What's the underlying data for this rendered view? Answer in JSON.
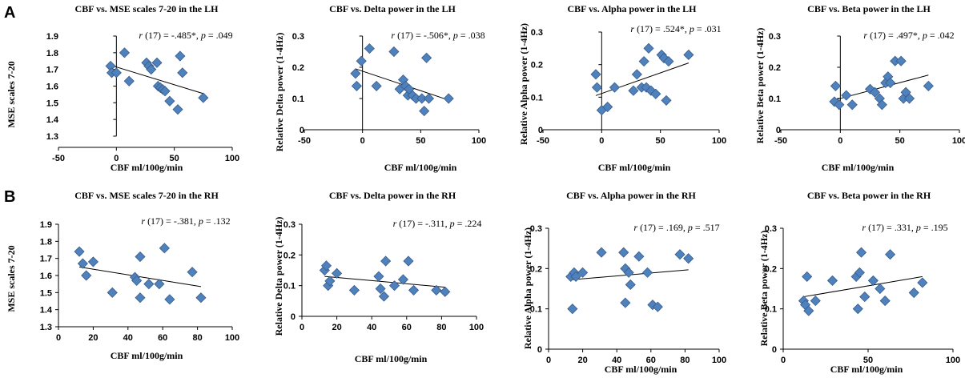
{
  "panel_labels": [
    "A",
    "B"
  ],
  "colors": {
    "marker_fill": "#4f81bd",
    "marker_stroke": "#385d8a",
    "axis": "#000000",
    "trend": "#000000"
  },
  "chart_data": [
    {
      "type": "scatter",
      "title": "CBF vs. MSE scales 7-20 in the LH",
      "xlabel": "CBF ml/100g/min",
      "ylabel": "MSE scales 7-20",
      "xlim": [
        -50,
        100
      ],
      "xticks": [
        -50,
        0,
        50,
        100
      ],
      "ylim": [
        1.3,
        1.9
      ],
      "yticks": [
        1.3,
        1.4,
        1.5,
        1.6,
        1.7,
        1.8,
        1.9
      ],
      "stat": {
        "r": "r",
        "df": " (17) = ",
        "rval": "-.485*",
        "sep": ", ",
        "p": "p",
        "eq": " = ",
        "pval": ".049"
      },
      "points": [
        [
          -5,
          1.72
        ],
        [
          -4,
          1.68
        ],
        [
          0,
          1.68
        ],
        [
          7,
          1.8
        ],
        [
          11,
          1.63
        ],
        [
          26,
          1.74
        ],
        [
          28,
          1.72
        ],
        [
          30,
          1.7
        ],
        [
          35,
          1.74
        ],
        [
          36,
          1.6
        ],
        [
          38,
          1.59
        ],
        [
          40,
          1.58
        ],
        [
          42,
          1.57
        ],
        [
          46,
          1.51
        ],
        [
          53,
          1.46
        ],
        [
          55,
          1.78
        ],
        [
          57,
          1.68
        ],
        [
          75,
          1.53
        ]
      ],
      "trend": [
        [
          -5,
          1.725
        ],
        [
          75,
          1.555
        ]
      ]
    },
    {
      "type": "scatter",
      "title": "CBF vs. Delta power in the LH",
      "xlabel": "CBF ml/100g/min",
      "ylabel": "Relative Delta power (1-4Hz)",
      "xlim": [
        -50,
        100
      ],
      "xticks": [
        -50,
        0,
        50,
        100
      ],
      "ylim": [
        0,
        0.3
      ],
      "yticks": [
        0,
        0.1,
        0.2,
        0.3
      ],
      "stat": {
        "r": "r",
        "df": " (17) = ",
        "rval": "-.506*",
        "sep": ", ",
        "p": "p",
        "eq": " = ",
        "pval": ".038"
      },
      "points": [
        [
          -6,
          0.18
        ],
        [
          -5,
          0.14
        ],
        [
          -1,
          0.22
        ],
        [
          6,
          0.26
        ],
        [
          12,
          0.14
        ],
        [
          27,
          0.25
        ],
        [
          32,
          0.13
        ],
        [
          35,
          0.16
        ],
        [
          37,
          0.14
        ],
        [
          39,
          0.11
        ],
        [
          40,
          0.13
        ],
        [
          43,
          0.11
        ],
        [
          46,
          0.1
        ],
        [
          51,
          0.1
        ],
        [
          53,
          0.06
        ],
        [
          55,
          0.23
        ],
        [
          57,
          0.1
        ],
        [
          74,
          0.1
        ]
      ],
      "trend": [
        [
          -6,
          0.195
        ],
        [
          74,
          0.095
        ]
      ]
    },
    {
      "type": "scatter",
      "title": "CBF vs. Alpha power in the LH",
      "xlabel": "CBF ml/100g/min",
      "ylabel": "Relative Alpha power (1-4Hz)",
      "xlim": [
        -50,
        100
      ],
      "xticks": [
        -50,
        0,
        50,
        100
      ],
      "ylim": [
        0,
        0.3
      ],
      "yticks": [
        0,
        0.1,
        0.2,
        0.3
      ],
      "stat": {
        "r": "r",
        "df": " (17) = ",
        "rval": ".524*",
        "sep": ", ",
        "p": "p",
        "eq": " = ",
        "pval": ".031"
      },
      "points": [
        [
          -5,
          0.17
        ],
        [
          -4,
          0.13
        ],
        [
          0,
          0.06
        ],
        [
          5,
          0.07
        ],
        [
          11,
          0.13
        ],
        [
          27,
          0.12
        ],
        [
          30,
          0.17
        ],
        [
          34,
          0.13
        ],
        [
          36,
          0.21
        ],
        [
          38,
          0.13
        ],
        [
          40,
          0.25
        ],
        [
          42,
          0.12
        ],
        [
          46,
          0.11
        ],
        [
          51,
          0.23
        ],
        [
          53,
          0.22
        ],
        [
          55,
          0.09
        ],
        [
          57,
          0.21
        ],
        [
          74,
          0.23
        ]
      ],
      "trend": [
        [
          -5,
          0.105
        ],
        [
          74,
          0.205
        ]
      ]
    },
    {
      "type": "scatter",
      "title": "CBF vs. Beta power in the LH",
      "xlabel": "CBF ml/100g/min",
      "ylabel": "Relative Beta  power (1-4Hz)",
      "xlim": [
        -50,
        100
      ],
      "xticks": [
        -50,
        0,
        50,
        100
      ],
      "ylim": [
        0,
        0.3
      ],
      "yticks": [
        0,
        0.1,
        0.2,
        0.3
      ],
      "stat": {
        "r": "r",
        "df": " (17) = ",
        "rval": ".497*",
        "sep": ", ",
        "p": "p",
        "eq": " = ",
        "pval": ".042"
      },
      "points": [
        [
          -5,
          0.09
        ],
        [
          -4,
          0.14
        ],
        [
          -1,
          0.08
        ],
        [
          5,
          0.11
        ],
        [
          10,
          0.08
        ],
        [
          25,
          0.13
        ],
        [
          29,
          0.12
        ],
        [
          33,
          0.1
        ],
        [
          35,
          0.08
        ],
        [
          38,
          0.15
        ],
        [
          40,
          0.17
        ],
        [
          42,
          0.15
        ],
        [
          46,
          0.22
        ],
        [
          51,
          0.22
        ],
        [
          53,
          0.1
        ],
        [
          55,
          0.12
        ],
        [
          58,
          0.1
        ],
        [
          74,
          0.14
        ]
      ],
      "trend": [
        [
          -5,
          0.095
        ],
        [
          74,
          0.175
        ]
      ]
    },
    {
      "type": "scatter",
      "title": "CBF vs. MSE scales 7-20 in the RH",
      "xlabel": "CBF ml/100g/min",
      "ylabel": "MSE scales 7-20",
      "xlim": [
        0,
        100
      ],
      "xticks": [
        0,
        20,
        40,
        60,
        80,
        100
      ],
      "ylim": [
        1.3,
        1.9
      ],
      "yticks": [
        1.3,
        1.4,
        1.5,
        1.6,
        1.7,
        1.8,
        1.9
      ],
      "stat": {
        "r": "r",
        "df": " (17) = ",
        "rval": "-.381",
        "sep": ", ",
        "p": "p",
        "eq": " = ",
        "pval": ".132"
      },
      "points": [
        [
          12,
          1.74
        ],
        [
          14,
          1.67
        ],
        [
          16,
          1.6
        ],
        [
          20,
          1.68
        ],
        [
          31,
          1.5
        ],
        [
          44,
          1.59
        ],
        [
          45,
          1.57
        ],
        [
          47,
          1.71
        ],
        [
          47,
          1.47
        ],
        [
          52,
          1.55
        ],
        [
          58,
          1.55
        ],
        [
          61,
          1.76
        ],
        [
          64,
          1.46
        ],
        [
          77,
          1.62
        ],
        [
          82,
          1.47
        ]
      ],
      "trend": [
        [
          12,
          1.65
        ],
        [
          82,
          1.535
        ]
      ]
    },
    {
      "type": "scatter",
      "title": "CBF vs. Delta power in the RH",
      "xlabel": "CBF ml/100g/min",
      "ylabel": "Relative Delta power (1-4Hz)",
      "xlim": [
        0,
        100
      ],
      "xticks": [
        0,
        20,
        40,
        60,
        80,
        100
      ],
      "ylim": [
        0,
        0.3
      ],
      "yticks": [
        0,
        0.1,
        0.2,
        0.3
      ],
      "stat": {
        "r": "r",
        "df": " (17) = ",
        "rval": "-.311",
        "sep": ", ",
        "p": "p",
        "eq": " = ",
        "pval": ".224"
      },
      "points": [
        [
          13,
          0.15
        ],
        [
          14,
          0.165
        ],
        [
          15,
          0.1
        ],
        [
          16,
          0.115
        ],
        [
          20,
          0.14
        ],
        [
          30,
          0.085
        ],
        [
          44,
          0.13
        ],
        [
          45,
          0.09
        ],
        [
          47,
          0.065
        ],
        [
          48,
          0.18
        ],
        [
          53,
          0.1
        ],
        [
          58,
          0.12
        ],
        [
          61,
          0.18
        ],
        [
          64,
          0.085
        ],
        [
          77,
          0.085
        ],
        [
          82,
          0.08
        ]
      ],
      "trend": [
        [
          13,
          0.13
        ],
        [
          82,
          0.095
        ]
      ]
    },
    {
      "type": "scatter",
      "title": "CBF vs. Alpha power in the RH",
      "xlabel": "CBF ml/100g/min",
      "ylabel": "Relative Alpha power (1-4Hz)",
      "xlim": [
        0,
        100
      ],
      "xticks": [
        0,
        20,
        40,
        60,
        80,
        100
      ],
      "ylim": [
        0,
        0.3
      ],
      "yticks": [
        0,
        0.1,
        0.2,
        0.3
      ],
      "stat": {
        "r": "r",
        "df": " (17) = ",
        "rval": ".169",
        "sep": ", ",
        "p": "p",
        "eq": " = ",
        "pval": ".517"
      },
      "points": [
        [
          13,
          0.18
        ],
        [
          14,
          0.1
        ],
        [
          15,
          0.19
        ],
        [
          16,
          0.18
        ],
        [
          20,
          0.19
        ],
        [
          31,
          0.24
        ],
        [
          44,
          0.24
        ],
        [
          45,
          0.2
        ],
        [
          45,
          0.115
        ],
        [
          47,
          0.19
        ],
        [
          48,
          0.16
        ],
        [
          53,
          0.23
        ],
        [
          58,
          0.19
        ],
        [
          61,
          0.11
        ],
        [
          64,
          0.105
        ],
        [
          77,
          0.235
        ],
        [
          82,
          0.225
        ]
      ],
      "trend": [
        [
          13,
          0.172
        ],
        [
          82,
          0.197
        ]
      ]
    },
    {
      "type": "scatter",
      "title": "CBF vs. Beta power in the RH",
      "xlabel": "CBF ml/100g/min",
      "ylabel": "Relative Beta  power (1-4Hz)",
      "xlim": [
        0,
        100
      ],
      "xticks": [
        0,
        50,
        100
      ],
      "ylim": [
        0,
        0.3
      ],
      "yticks": [
        0,
        0.1,
        0.2,
        0.3
      ],
      "stat": {
        "r": "r",
        "df": " (17) = ",
        "rval": ".331",
        "sep": ", ",
        "p": "p",
        "eq": " = ",
        "pval": ".195"
      },
      "points": [
        [
          12,
          0.12
        ],
        [
          13,
          0.11
        ],
        [
          14,
          0.18
        ],
        [
          15,
          0.095
        ],
        [
          19,
          0.12
        ],
        [
          29,
          0.17
        ],
        [
          43,
          0.18
        ],
        [
          44,
          0.1
        ],
        [
          45,
          0.19
        ],
        [
          46,
          0.24
        ],
        [
          48,
          0.13
        ],
        [
          53,
          0.17
        ],
        [
          57,
          0.15
        ],
        [
          60,
          0.12
        ],
        [
          63,
          0.235
        ],
        [
          77,
          0.14
        ],
        [
          82,
          0.165
        ]
      ],
      "trend": [
        [
          12,
          0.13
        ],
        [
          82,
          0.18
        ]
      ]
    }
  ]
}
